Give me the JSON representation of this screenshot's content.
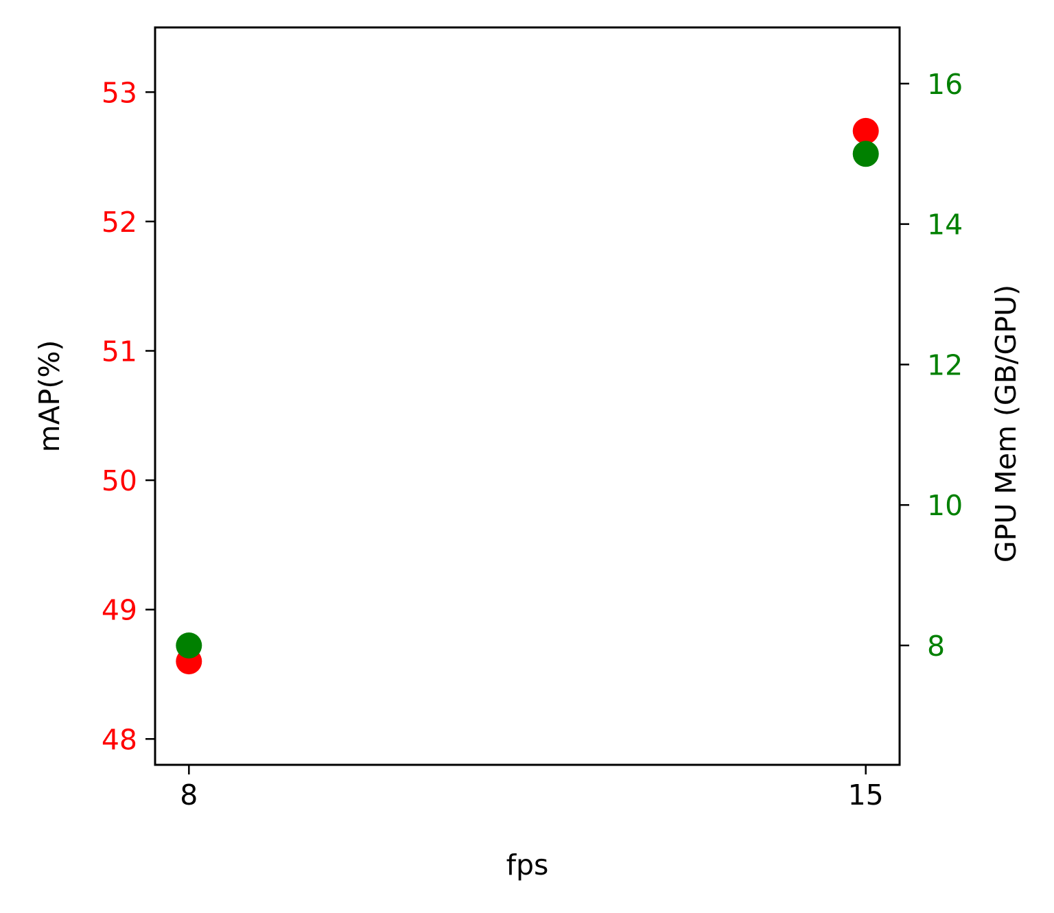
{
  "chart_data": {
    "type": "scatter",
    "title": "",
    "xlabel": "fps",
    "x_ticks": [
      8,
      15
    ],
    "xlim": [
      7.65,
      15.35
    ],
    "y_left": {
      "label": "mAP(%)",
      "color": "#ff0000",
      "ticks": [
        48,
        49,
        50,
        51,
        52,
        53
      ],
      "ylim": [
        47.8,
        53.5
      ]
    },
    "y_right": {
      "label": "GPU Mem (GB/GPU)",
      "color": "#008000",
      "ticks": [
        8,
        10,
        12,
        14,
        16
      ],
      "ylim": [
        6.3,
        16.8
      ]
    },
    "series": [
      {
        "axis": "left",
        "color": "#ff0000",
        "points": [
          {
            "x": 8,
            "y": 48.6
          },
          {
            "x": 15,
            "y": 52.7
          }
        ]
      },
      {
        "axis": "right",
        "color": "#008000",
        "points": [
          {
            "x": 8,
            "y": 8.0
          },
          {
            "x": 15,
            "y": 15.0
          }
        ]
      }
    ],
    "grid": false,
    "legend": "none"
  }
}
